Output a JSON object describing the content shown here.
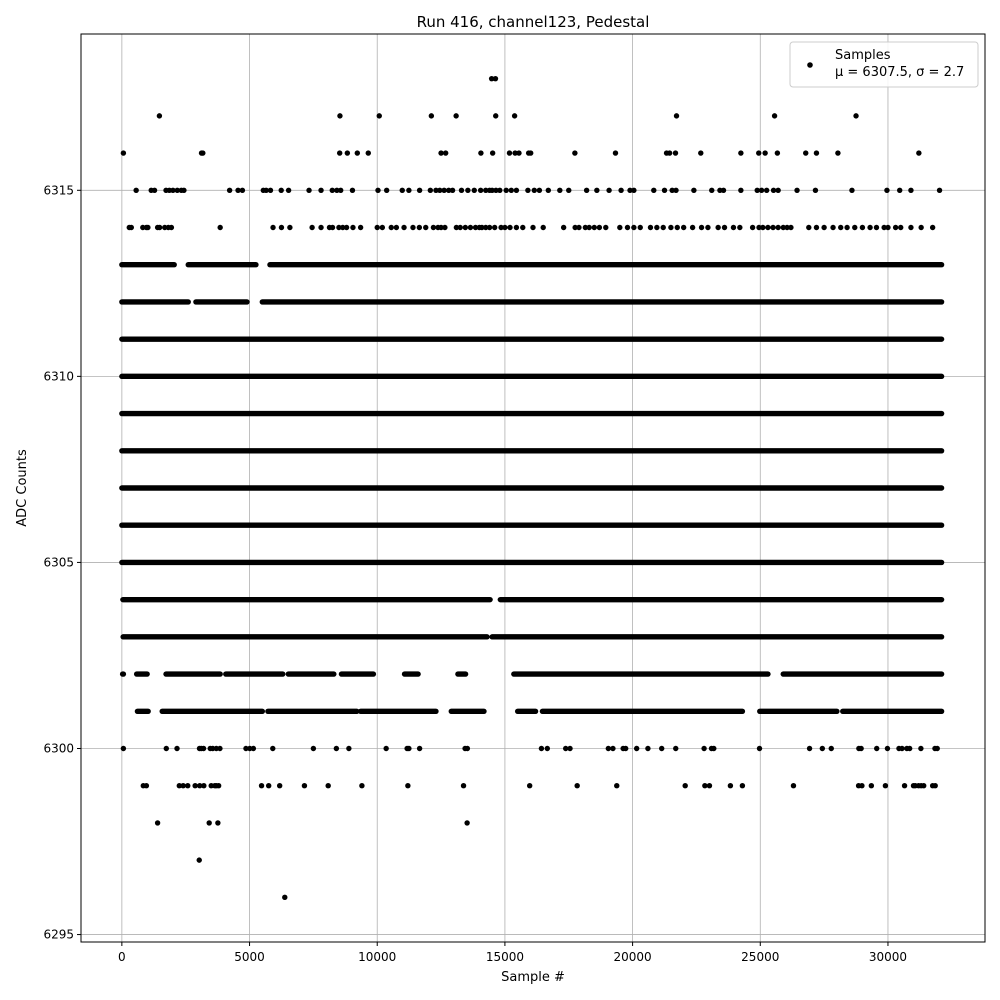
{
  "chart_data": {
    "type": "scatter",
    "title": "Run 416, channel123, Pedestal",
    "xlabel": "Sample #",
    "ylabel": "ADC Counts",
    "xlim": [
      -1600,
      33800
    ],
    "ylim": [
      6294.8,
      6319.2
    ],
    "x_ticks": [
      0,
      5000,
      10000,
      15000,
      20000,
      25000,
      30000
    ],
    "y_ticks": [
      6295,
      6300,
      6305,
      6310,
      6315
    ],
    "grid": true,
    "legend": {
      "position": "top-right",
      "label_line1": "Samples",
      "label_line2": "μ = 6307.5, σ = 2.7"
    },
    "marker_color": "#000000",
    "x_range_samples": [
      0,
      32100
    ],
    "levels": [
      {
        "y": 6296,
        "points": [
          6380
        ]
      },
      {
        "y": 6297,
        "points": [
          3030
        ]
      },
      {
        "y": 6298,
        "points": [
          1400,
          3420,
          3760,
          13520
        ]
      },
      {
        "y": 6299,
        "points": [
          840,
          960,
          2250,
          2400,
          2580,
          2870,
          3050,
          3210,
          3500,
          3640,
          3700,
          3790,
          5470,
          5750,
          6180,
          7150,
          8080,
          9400,
          11200,
          13380,
          15970,
          17830,
          19380,
          22060,
          22830,
          23010,
          23830,
          24300,
          26300,
          28850,
          28980,
          29350,
          29900,
          30650,
          31000,
          31070,
          31200,
          31300,
          31400,
          31750,
          31850
        ]
      },
      {
        "y": 6300,
        "points": [
          60,
          1740,
          2160,
          3040,
          3110,
          3200,
          3460,
          3560,
          3700,
          3840,
          4860,
          5010,
          5150,
          5910,
          7500,
          8400,
          8890,
          10350,
          11170,
          11240,
          11660,
          13440,
          13530,
          16430,
          16660,
          17380,
          17550,
          19050,
          19230,
          19630,
          19730,
          20160,
          20600,
          21140,
          21690,
          22800,
          23090,
          23180,
          24970,
          26930,
          27430,
          27780,
          28860,
          28950,
          29560,
          29980,
          30430,
          30550,
          30740,
          30850,
          31290,
          31840,
          31930
        ]
      },
      {
        "y": 6301,
        "ranges": [
          [
            610,
            1030
          ],
          [
            1580,
            5500
          ],
          [
            5720,
            9200
          ],
          [
            9350,
            12300
          ],
          [
            12900,
            14180
          ],
          [
            15500,
            16200
          ],
          [
            16470,
            24300
          ],
          [
            24980,
            28000
          ],
          [
            28230,
            32100
          ]
        ]
      },
      {
        "y": 6302,
        "ranges": [
          [
            30,
            60
          ],
          [
            580,
            990
          ],
          [
            1730,
            3850
          ],
          [
            4070,
            6300
          ],
          [
            6520,
            8300
          ],
          [
            8600,
            9850
          ],
          [
            11070,
            11600
          ],
          [
            13160,
            13460
          ],
          [
            15350,
            25300
          ],
          [
            25900,
            32100
          ]
        ]
      },
      {
        "y": 6303,
        "ranges": [
          [
            50,
            14300
          ],
          [
            14500,
            32100
          ]
        ]
      },
      {
        "y": 6304,
        "ranges": [
          [
            40,
            14420
          ],
          [
            14820,
            32100
          ]
        ]
      },
      {
        "y": 6305,
        "ranges": [
          [
            0,
            32100
          ]
        ]
      },
      {
        "y": 6306,
        "ranges": [
          [
            0,
            32100
          ]
        ]
      },
      {
        "y": 6307,
        "ranges": [
          [
            0,
            32100
          ]
        ]
      },
      {
        "y": 6308,
        "ranges": [
          [
            0,
            32100
          ]
        ]
      },
      {
        "y": 6309,
        "ranges": [
          [
            0,
            32100
          ]
        ]
      },
      {
        "y": 6310,
        "ranges": [
          [
            0,
            32100
          ]
        ]
      },
      {
        "y": 6311,
        "ranges": [
          [
            0,
            32100
          ]
        ]
      },
      {
        "y": 6312,
        "ranges": [
          [
            0,
            2600
          ],
          [
            2900,
            4900
          ],
          [
            5500,
            32100
          ]
        ]
      },
      {
        "y": 6313,
        "ranges": [
          [
            0,
            2050
          ],
          [
            2600,
            5250
          ],
          [
            5800,
            32100
          ]
        ]
      },
      {
        "y": 6314,
        "points": [
          290,
          370,
          820,
          960,
          1020,
          1400,
          1480,
          1680,
          1820,
          1940,
          3850,
          5920,
          6250,
          6580,
          7450,
          7800,
          8130,
          8250,
          8500,
          8650,
          8800,
          9050,
          9350,
          10000,
          10200,
          10550,
          10750,
          11050,
          11400,
          11650,
          11900,
          12200,
          12380,
          12500,
          12650,
          13100,
          13250,
          13450,
          13650,
          13850,
          14000,
          14100,
          14250,
          14400,
          14600,
          14850,
          15000,
          15200,
          15450,
          15700,
          16100,
          16500,
          17300,
          17750,
          17900,
          18150,
          18300,
          18500,
          18700,
          18950,
          19500,
          19800,
          20050,
          20300,
          20700,
          20950,
          21200,
          21500,
          21750,
          22000,
          22350,
          22700,
          22950,
          23350,
          23600,
          23950,
          24200,
          24700,
          24950,
          25100,
          25300,
          25500,
          25700,
          25900,
          26050,
          26200,
          26900,
          27200,
          27500,
          27850,
          28150,
          28400,
          28700,
          29000,
          29300,
          29550,
          29850,
          30000,
          30300,
          30500,
          30900,
          31300,
          31750
        ]
      },
      {
        "y": 6315,
        "points": [
          560,
          1150,
          1280,
          1730,
          1860,
          2000,
          2170,
          2330,
          2430,
          4220,
          4550,
          4720,
          5540,
          5650,
          5820,
          6240,
          6530,
          7330,
          7800,
          8240,
          8420,
          8570,
          9030,
          10030,
          10370,
          10980,
          11240,
          11660,
          12080,
          12300,
          12450,
          12620,
          12800,
          12950,
          13300,
          13550,
          13800,
          14050,
          14250,
          14400,
          14500,
          14650,
          14800,
          15050,
          15250,
          15450,
          15900,
          16150,
          16350,
          16700,
          17150,
          17500,
          18200,
          18600,
          19080,
          19550,
          19900,
          20050,
          20830,
          21250,
          21550,
          21700,
          22400,
          23100,
          23420,
          23560,
          24240,
          24880,
          25050,
          25250,
          25520,
          25700,
          26440,
          27160,
          28590,
          29960,
          30460,
          30900,
          32020
        ]
      },
      {
        "y": 6316,
        "points": [
          60,
          3120,
          3170,
          8530,
          8830,
          9220,
          9650,
          12500,
          12680,
          14060,
          14520,
          15180,
          15400,
          15550,
          15930,
          16010,
          17740,
          19330,
          21330,
          21450,
          21680,
          22670,
          24240,
          24940,
          25190,
          25670,
          26780,
          27200,
          28040,
          31210
        ]
      },
      {
        "y": 6317,
        "points": [
          1470,
          8540,
          10080,
          12120,
          13090,
          14640,
          15380,
          21720,
          25560,
          28750
        ]
      },
      {
        "y": 6318,
        "points": [
          14480,
          14630
        ]
      }
    ]
  }
}
